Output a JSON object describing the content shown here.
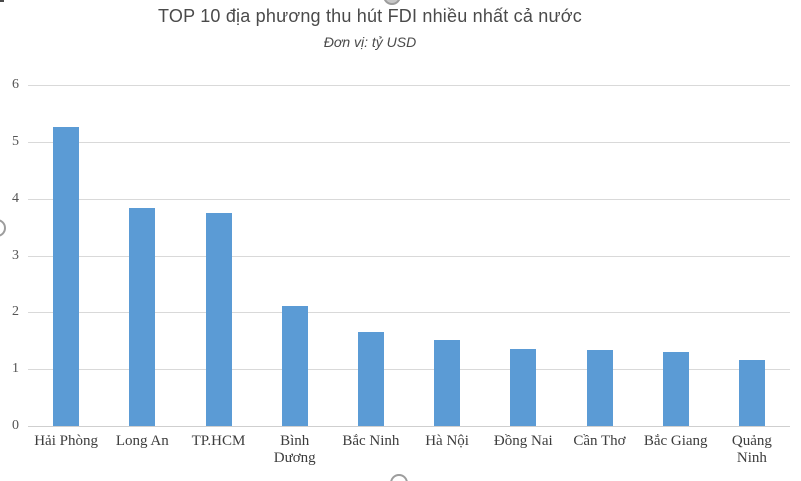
{
  "chart_data": {
    "type": "bar",
    "title": "TOP 10 địa phương thu hút FDI nhiều nhất cả nước",
    "subtitle": "Đơn vị: tỷ USD",
    "categories": [
      "Hải Phòng",
      "Long An",
      "TP.HCM",
      "Bình\nDương",
      "Bắc Ninh",
      "Hà Nội",
      "Đồng Nai",
      "Cần Thơ",
      "Bắc Giang",
      "Quảng\nNinh"
    ],
    "values": [
      5.26,
      3.84,
      3.74,
      2.12,
      1.66,
      1.52,
      1.36,
      1.34,
      1.31,
      1.16
    ],
    "xlabel": "",
    "ylabel": "",
    "ylim": [
      0,
      6
    ],
    "yticks": [
      0,
      1,
      2,
      3,
      4,
      5,
      6
    ],
    "grid": "horizontal",
    "legend": "none",
    "bar_color": "#5B9BD5",
    "gridline_color": "#D9D9D9",
    "tick_text_color": "#3D3D3D",
    "title_color": "#4A4A4A"
  },
  "selection": {
    "handle_positions": [
      "top-center",
      "left-middle",
      "bottom-center"
    ]
  }
}
